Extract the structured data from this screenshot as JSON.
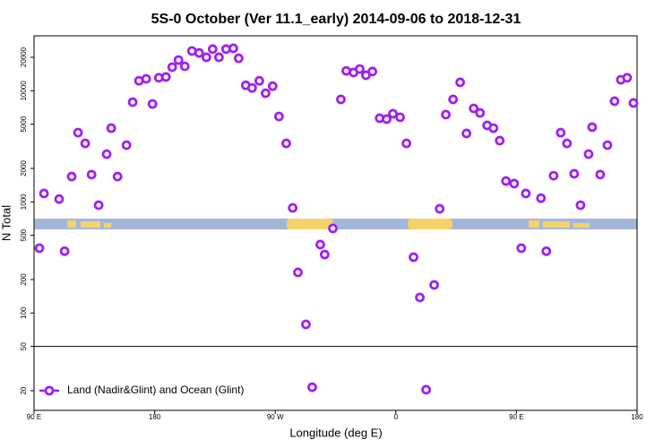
{
  "chart_data": {
    "type": "scatter",
    "title": "5S-0 October (Ver 11.1_early)   2014-09-06 to 2018-12-31",
    "x_label": "Longitude (deg E)",
    "y_label": "N Total",
    "log_y": true,
    "legend_position": "bottom-left",
    "xlim": [
      90,
      540
    ],
    "xticks": [
      {
        "value": 90,
        "label": "90 E"
      },
      {
        "value": 180,
        "label": "180"
      },
      {
        "value": 270,
        "label": "90 W"
      },
      {
        "value": 360,
        "label": "0"
      },
      {
        "value": 450,
        "label": "90 E"
      },
      {
        "value": 540,
        "label": "180"
      }
    ],
    "ylim": [
      13.3,
      31200
    ],
    "yticks": [
      20,
      50,
      100,
      200,
      500,
      1000,
      2000,
      5000,
      10000,
      20000
    ],
    "hline": 50,
    "x": [
      94,
      97.4,
      108.7,
      112.8,
      118.1,
      122.8,
      128.2,
      132.9,
      138.2,
      144.2,
      147.6,
      152.3,
      159,
      163.6,
      168.3,
      173.7,
      178.4,
      183.1,
      188.4,
      193.1,
      197.8,
      202.5,
      207.8,
      213.2,
      218.6,
      223.3,
      228,
      233.3,
      238.7,
      242.7,
      248,
      252.7,
      258.1,
      262.8,
      268.1,
      272.8,
      278.2,
      283,
      286.9,
      292.9,
      297.6,
      303.6,
      306.9,
      313,
      319,
      323,
      328.4,
      333,
      337.7,
      342.5,
      347.9,
      353.1,
      357.8,
      363.2,
      367.9,
      373.2,
      377.9,
      382.6,
      388.6,
      392.7,
      397.3,
      402.7,
      408,
      412.7,
      418.1,
      422.8,
      428.1,
      432.8,
      437.5,
      442.2,
      448.3,
      453.6,
      457,
      468.3,
      472.3,
      477.7,
      483,
      487.7,
      493.1,
      497.8,
      503.8,
      506.5,
      512.5,
      517.9,
      523.2,
      527.9,
      532.6,
      537.3
    ],
    "series": [
      {
        "name": "Land (Nadir&Glint) and Ocean (Glint)",
        "color": "#a020f0",
        "values": [
          383,
          1190,
          1060,
          360,
          1690,
          4200,
          3360,
          1760,
          934,
          2690,
          4610,
          1690,
          3240,
          7900,
          12300,
          12800,
          7610,
          13100,
          13300,
          16300,
          18900,
          16600,
          22800,
          21900,
          20000,
          23700,
          20000,
          23700,
          24100,
          19600,
          11200,
          10600,
          12300,
          9500,
          11000,
          5870,
          3360,
          883,
          232,
          79,
          21.5,
          413,
          336,
          577,
          8360,
          15100,
          14600,
          15700,
          13800,
          14900,
          5660,
          5560,
          6210,
          5770,
          3360,
          318,
          138,
          20.4,
          179,
          867,
          6100,
          8360,
          11900,
          4130,
          6940,
          6320,
          4880,
          4610,
          3560,
          1540,
          1460,
          383,
          1190,
          1080,
          360,
          1720,
          4200,
          3360,
          1790,
          934,
          2690,
          4700,
          1760,
          3240,
          8060,
          12560,
          13100,
          7760
        ]
      }
    ]
  }
}
